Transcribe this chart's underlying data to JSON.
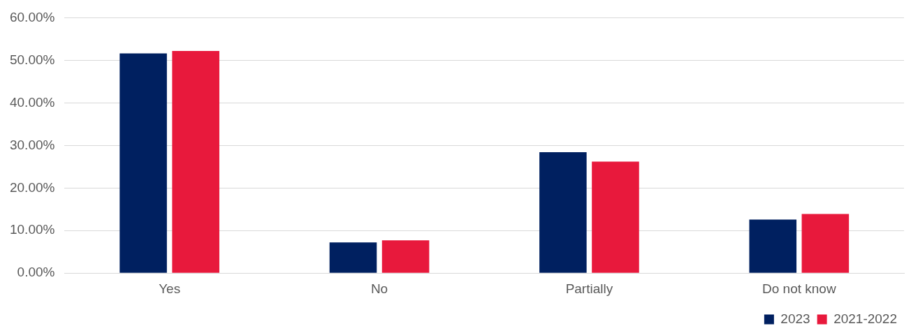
{
  "chart_data": {
    "type": "bar",
    "categories": [
      "Yes",
      "No",
      "Partially",
      "Do not know"
    ],
    "series": [
      {
        "name": "2023",
        "color": "#002060",
        "values": [
          51.6,
          7.2,
          28.4,
          12.6
        ]
      },
      {
        "name": "2021-2022",
        "color": "#e8193c",
        "values": [
          52.2,
          7.7,
          26.2,
          13.9
        ]
      }
    ],
    "ylim": [
      0,
      60
    ],
    "yticks": [
      {
        "value": 0,
        "label": "0.00%"
      },
      {
        "value": 10,
        "label": "10.00%"
      },
      {
        "value": 20,
        "label": "20.00%"
      },
      {
        "value": 30,
        "label": "30.00%"
      },
      {
        "value": 40,
        "label": "40.00%"
      },
      {
        "value": 50,
        "label": "50.00%"
      },
      {
        "value": 60,
        "label": "60.00%"
      }
    ],
    "grid": "y",
    "legend": "bottom right"
  }
}
